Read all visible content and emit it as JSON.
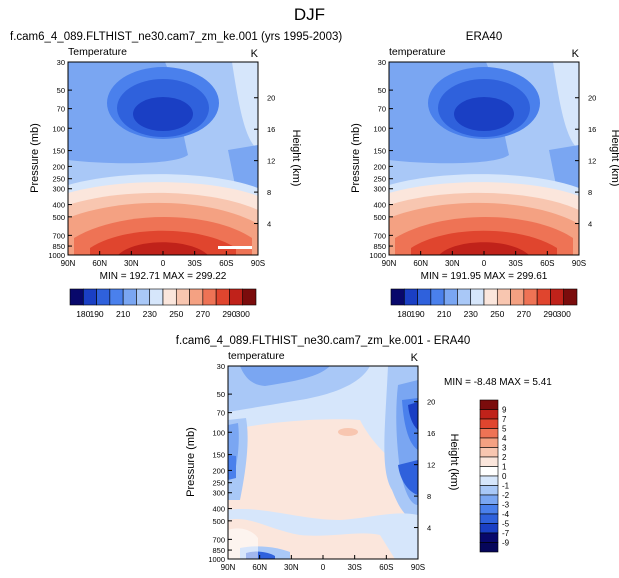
{
  "page_title": "DJF",
  "chart_data": [
    {
      "type": "heatmap",
      "title": "f.cam6_4_089.FLTHIST_ne30.cam7_zm_ke.001 (yrs 1995-2003)",
      "subtitle_left": "Temperature",
      "units": "K",
      "xlabel": "",
      "ylabel": "Pressure (mb)",
      "ylabel_right": "Height (km)",
      "x_ticks": [
        "90N",
        "60N",
        "30N",
        "0",
        "30S",
        "60S",
        "90S"
      ],
      "y_ticks": [
        "30",
        "50",
        "70",
        "100",
        "150",
        "200",
        "250",
        "300",
        "400",
        "500",
        "700",
        "850",
        "1000"
      ],
      "y2_ticks": [
        "20",
        "16",
        "12",
        "8",
        "4"
      ],
      "stats": "MIN = 192.71  MAX = 299.22",
      "colorbar_levels": [
        "180",
        "190",
        "200",
        "210",
        "220",
        "230",
        "240",
        "250",
        "260",
        "270",
        "280",
        "290",
        "300"
      ],
      "colorbar_labels": [
        "180",
        "190",
        "210",
        "230",
        "250",
        "270",
        "290",
        "300"
      ]
    },
    {
      "type": "heatmap",
      "title": "ERA40",
      "subtitle_left": "temperature",
      "units": "K",
      "xlabel": "",
      "ylabel": "Pressure (mb)",
      "ylabel_right": "Height (km)",
      "x_ticks": [
        "90N",
        "60N",
        "30N",
        "0",
        "30S",
        "60S",
        "90S"
      ],
      "y_ticks": [
        "30",
        "50",
        "70",
        "100",
        "150",
        "200",
        "250",
        "300",
        "400",
        "500",
        "700",
        "850",
        "1000"
      ],
      "y2_ticks": [
        "20",
        "16",
        "12",
        "8",
        "4"
      ],
      "stats": "MIN = 191.95  MAX = 299.61",
      "colorbar_levels": [
        "180",
        "190",
        "200",
        "210",
        "220",
        "230",
        "240",
        "250",
        "260",
        "270",
        "280",
        "290",
        "300"
      ],
      "colorbar_labels": [
        "180",
        "190",
        "210",
        "230",
        "250",
        "270",
        "290",
        "300"
      ]
    },
    {
      "type": "heatmap",
      "title": "f.cam6_4_089.FLTHIST_ne30.cam7_zm_ke.001 - ERA40",
      "subtitle_left": "temperature",
      "units": "K",
      "xlabel": "",
      "ylabel": "Pressure (mb)",
      "ylabel_right": "Height (km)",
      "x_ticks": [
        "90N",
        "60N",
        "30N",
        "0",
        "30S",
        "60S",
        "90S"
      ],
      "y_ticks": [
        "30",
        "50",
        "70",
        "100",
        "150",
        "200",
        "250",
        "300",
        "400",
        "500",
        "700",
        "850",
        "1000"
      ],
      "y2_ticks": [
        "20",
        "16",
        "12",
        "8",
        "4"
      ],
      "stats": "MIN =  -8.48  MAX =  5.41",
      "colorbar_levels": [
        "9",
        "7",
        "5",
        "4",
        "3",
        "2",
        "1",
        "0",
        "-1",
        "-2",
        "-3",
        "-4",
        "-5",
        "-7",
        "-9"
      ],
      "colorbar_labels": [
        "9",
        "7",
        "5",
        "4",
        "3",
        "2",
        "1",
        "0",
        "-1",
        "-2",
        "-3",
        "-4",
        "-5",
        "-7",
        "-9"
      ]
    }
  ],
  "colors": {
    "temp_scale": [
      "#08086b",
      "#1a3fc4",
      "#2f61dc",
      "#4a80ec",
      "#7aa6f2",
      "#a9c8f7",
      "#d6e6fb",
      "#fbe6dc",
      "#f8c6b0",
      "#f4a182",
      "#ee7355",
      "#e0452e",
      "#c0221a",
      "#7b0c0c"
    ],
    "diff_scale": [
      "#7b0c0c",
      "#c0221a",
      "#e0452e",
      "#ee7355",
      "#f4a182",
      "#f8c6b0",
      "#fbe6dc",
      "#ffffff",
      "#d6e6fb",
      "#a9c8f7",
      "#7aa6f2",
      "#4a80ec",
      "#2f61dc",
      "#1a3fc4",
      "#08086b",
      "#06065a"
    ]
  }
}
